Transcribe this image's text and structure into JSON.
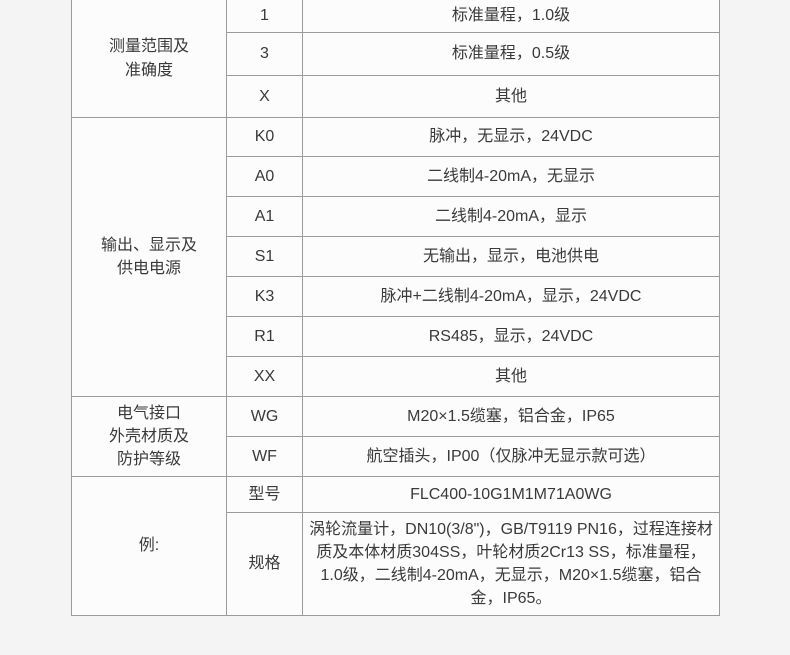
{
  "colors": {
    "page_background": "#f4f4f5",
    "cell_background": "#fcfcfc",
    "border": "#9b9b9b",
    "text": "#3a3a3a"
  },
  "table": {
    "groups": [
      {
        "category": "测量范围及\n准确度",
        "rows": [
          {
            "code": "1",
            "desc": "标准量程，1.0级"
          },
          {
            "code": "3",
            "desc": "标准量程，0.5级"
          },
          {
            "code": "X",
            "desc": "其他"
          }
        ]
      },
      {
        "category": "输出、显示及\n供电电源",
        "rows": [
          {
            "code": "K0",
            "desc": "脉冲，无显示，24VDC"
          },
          {
            "code": "A0",
            "desc": "二线制4-20mA，无显示"
          },
          {
            "code": "A1",
            "desc": "二线制4-20mA，显示"
          },
          {
            "code": "S1",
            "desc": "无输出，显示，电池供电"
          },
          {
            "code": "K3",
            "desc": "脉冲+二线制4-20mA，显示，24VDC"
          },
          {
            "code": "R1",
            "desc": "RS485，显示，24VDC"
          },
          {
            "code": "XX",
            "desc": "其他"
          }
        ]
      },
      {
        "category": "电气接口\n外壳材质及\n防护等级",
        "rows": [
          {
            "code": "WG",
            "desc": "M20×1.5缆塞，铝合金，IP65"
          },
          {
            "code": "WF",
            "desc": "航空插头，IP00（仅脉冲无显示款可选）"
          }
        ]
      },
      {
        "category": "例:",
        "rows": [
          {
            "code": "型号",
            "desc": "FLC400-10G1M1M71A0WG"
          },
          {
            "code": "规格",
            "desc": "涡轮流量计，DN10(3/8\")，GB/T9119 PN16，过程连接材质及本体材质304SS，叶轮材质2Cr13 SS，标准量程，1.0级，二线制4-20mA，无显示，M20×1.5缆塞，铝合金，IP65。"
          }
        ]
      }
    ]
  }
}
